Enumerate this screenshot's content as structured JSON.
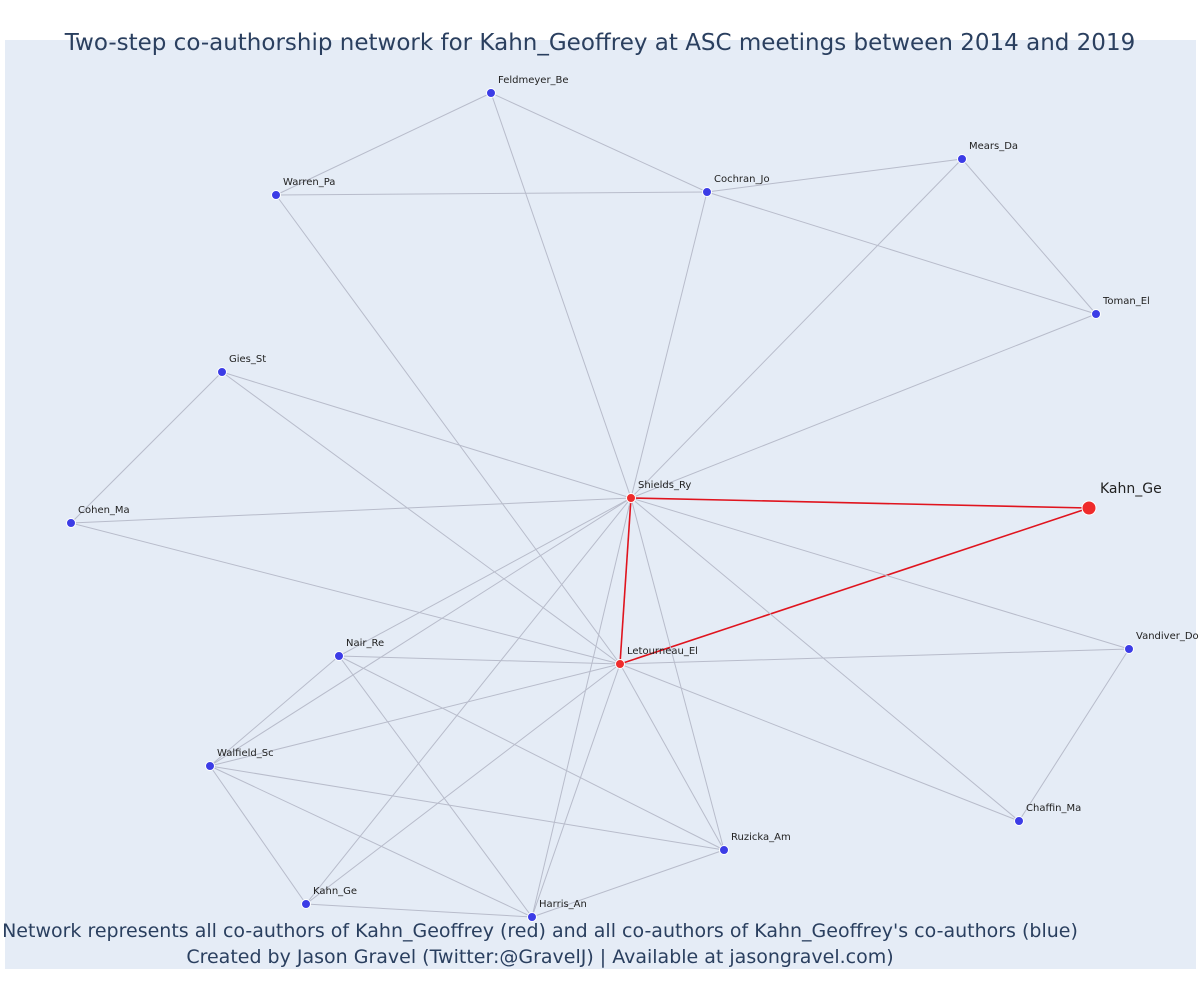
{
  "title": "Two-step co-authorship network for Kahn_Geoffrey at ASC meetings between 2014 and 2019",
  "caption": {
    "line1": "Network represents all co-authors of Kahn_Geoffrey (red) and all co-authors of Kahn_Geoffrey's co-authors (blue)",
    "line2": "Created by Jason Gravel (Twitter:@GravelJ) | Available at jasongravel.com)"
  },
  "colors": {
    "first_degree": "#ef2b2b",
    "second_degree": "#3c3ce6",
    "edge": "#b8bccb",
    "focal_edge": "#e0141e",
    "background": "#e5ecf6"
  },
  "network": {
    "nodes": [
      {
        "id": "Kahn_Ge_focal",
        "label": "Kahn_Ge",
        "group": "focal"
      },
      {
        "id": "Shields_Ry",
        "label": "Shields_Ry",
        "group": "first_degree"
      },
      {
        "id": "Letourneau_El",
        "label": "Letourneau_El",
        "group": "first_degree"
      },
      {
        "id": "Feldmeyer_Be",
        "label": "Feldmeyer_Be",
        "group": "second_degree"
      },
      {
        "id": "Warren_Pa",
        "label": "Warren_Pa",
        "group": "second_degree"
      },
      {
        "id": "Cochran_Jo",
        "label": "Cochran_Jo",
        "group": "second_degree"
      },
      {
        "id": "Mears_Da",
        "label": "Mears_Da",
        "group": "second_degree"
      },
      {
        "id": "Toman_El",
        "label": "Toman_El",
        "group": "second_degree"
      },
      {
        "id": "Gies_St",
        "label": "Gies_St",
        "group": "second_degree"
      },
      {
        "id": "Cohen_Ma",
        "label": "Cohen_Ma",
        "group": "second_degree"
      },
      {
        "id": "Nair_Re",
        "label": "Nair_Re",
        "group": "second_degree"
      },
      {
        "id": "Vandiver_Do",
        "label": "Vandiver_Do",
        "group": "second_degree"
      },
      {
        "id": "Walfield_Sc",
        "label": "Walfield_Sc",
        "group": "second_degree"
      },
      {
        "id": "Chaffin_Ma",
        "label": "Chaffin_Ma",
        "group": "second_degree"
      },
      {
        "id": "Ruzicka_Am",
        "label": "Ruzicka_Am",
        "group": "second_degree"
      },
      {
        "id": "Kahn_Ge_coauthor",
        "label": "Kahn_Ge",
        "group": "second_degree"
      },
      {
        "id": "Harris_An",
        "label": "Harris_An",
        "group": "second_degree"
      }
    ],
    "edges": [
      [
        "Shields_Ry",
        "Kahn_Ge_focal"
      ],
      [
        "Letourneau_El",
        "Kahn_Ge_focal"
      ],
      [
        "Shields_Ry",
        "Letourneau_El"
      ],
      [
        "Feldmeyer_Be",
        "Warren_Pa"
      ],
      [
        "Feldmeyer_Be",
        "Cochran_Jo"
      ],
      [
        "Feldmeyer_Be",
        "Shields_Ry"
      ],
      [
        "Warren_Pa",
        "Cochran_Jo"
      ],
      [
        "Warren_Pa",
        "Letourneau_El"
      ],
      [
        "Cochran_Jo",
        "Mears_Da"
      ],
      [
        "Cochran_Jo",
        "Toman_El"
      ],
      [
        "Cochran_Jo",
        "Shields_Ry"
      ],
      [
        "Mears_Da",
        "Toman_El"
      ],
      [
        "Mears_Da",
        "Shields_Ry"
      ],
      [
        "Toman_El",
        "Shields_Ry"
      ],
      [
        "Gies_St",
        "Cohen_Ma"
      ],
      [
        "Gies_St",
        "Shields_Ry"
      ],
      [
        "Gies_St",
        "Letourneau_El"
      ],
      [
        "Cohen_Ma",
        "Shields_Ry"
      ],
      [
        "Cohen_Ma",
        "Letourneau_El"
      ],
      [
        "Nair_Re",
        "Shields_Ry"
      ],
      [
        "Nair_Re",
        "Letourneau_El"
      ],
      [
        "Nair_Re",
        "Walfield_Sc"
      ],
      [
        "Nair_Re",
        "Ruzicka_Am"
      ],
      [
        "Nair_Re",
        "Harris_An"
      ],
      [
        "Vandiver_Do",
        "Shields_Ry"
      ],
      [
        "Vandiver_Do",
        "Letourneau_El"
      ],
      [
        "Vandiver_Do",
        "Chaffin_Ma"
      ],
      [
        "Chaffin_Ma",
        "Shields_Ry"
      ],
      [
        "Chaffin_Ma",
        "Letourneau_El"
      ],
      [
        "Walfield_Sc",
        "Shields_Ry"
      ],
      [
        "Walfield_Sc",
        "Letourneau_El"
      ],
      [
        "Walfield_Sc",
        "Ruzicka_Am"
      ],
      [
        "Walfield_Sc",
        "Kahn_Ge_coauthor"
      ],
      [
        "Walfield_Sc",
        "Harris_An"
      ],
      [
        "Ruzicka_Am",
        "Shields_Ry"
      ],
      [
        "Ruzicka_Am",
        "Letourneau_El"
      ],
      [
        "Ruzicka_Am",
        "Harris_An"
      ],
      [
        "Kahn_Ge_coauthor",
        "Shields_Ry"
      ],
      [
        "Kahn_Ge_coauthor",
        "Letourneau_El"
      ],
      [
        "Kahn_Ge_coauthor",
        "Harris_An"
      ],
      [
        "Harris_An",
        "Shields_Ry"
      ],
      [
        "Harris_An",
        "Letourneau_El"
      ]
    ]
  }
}
